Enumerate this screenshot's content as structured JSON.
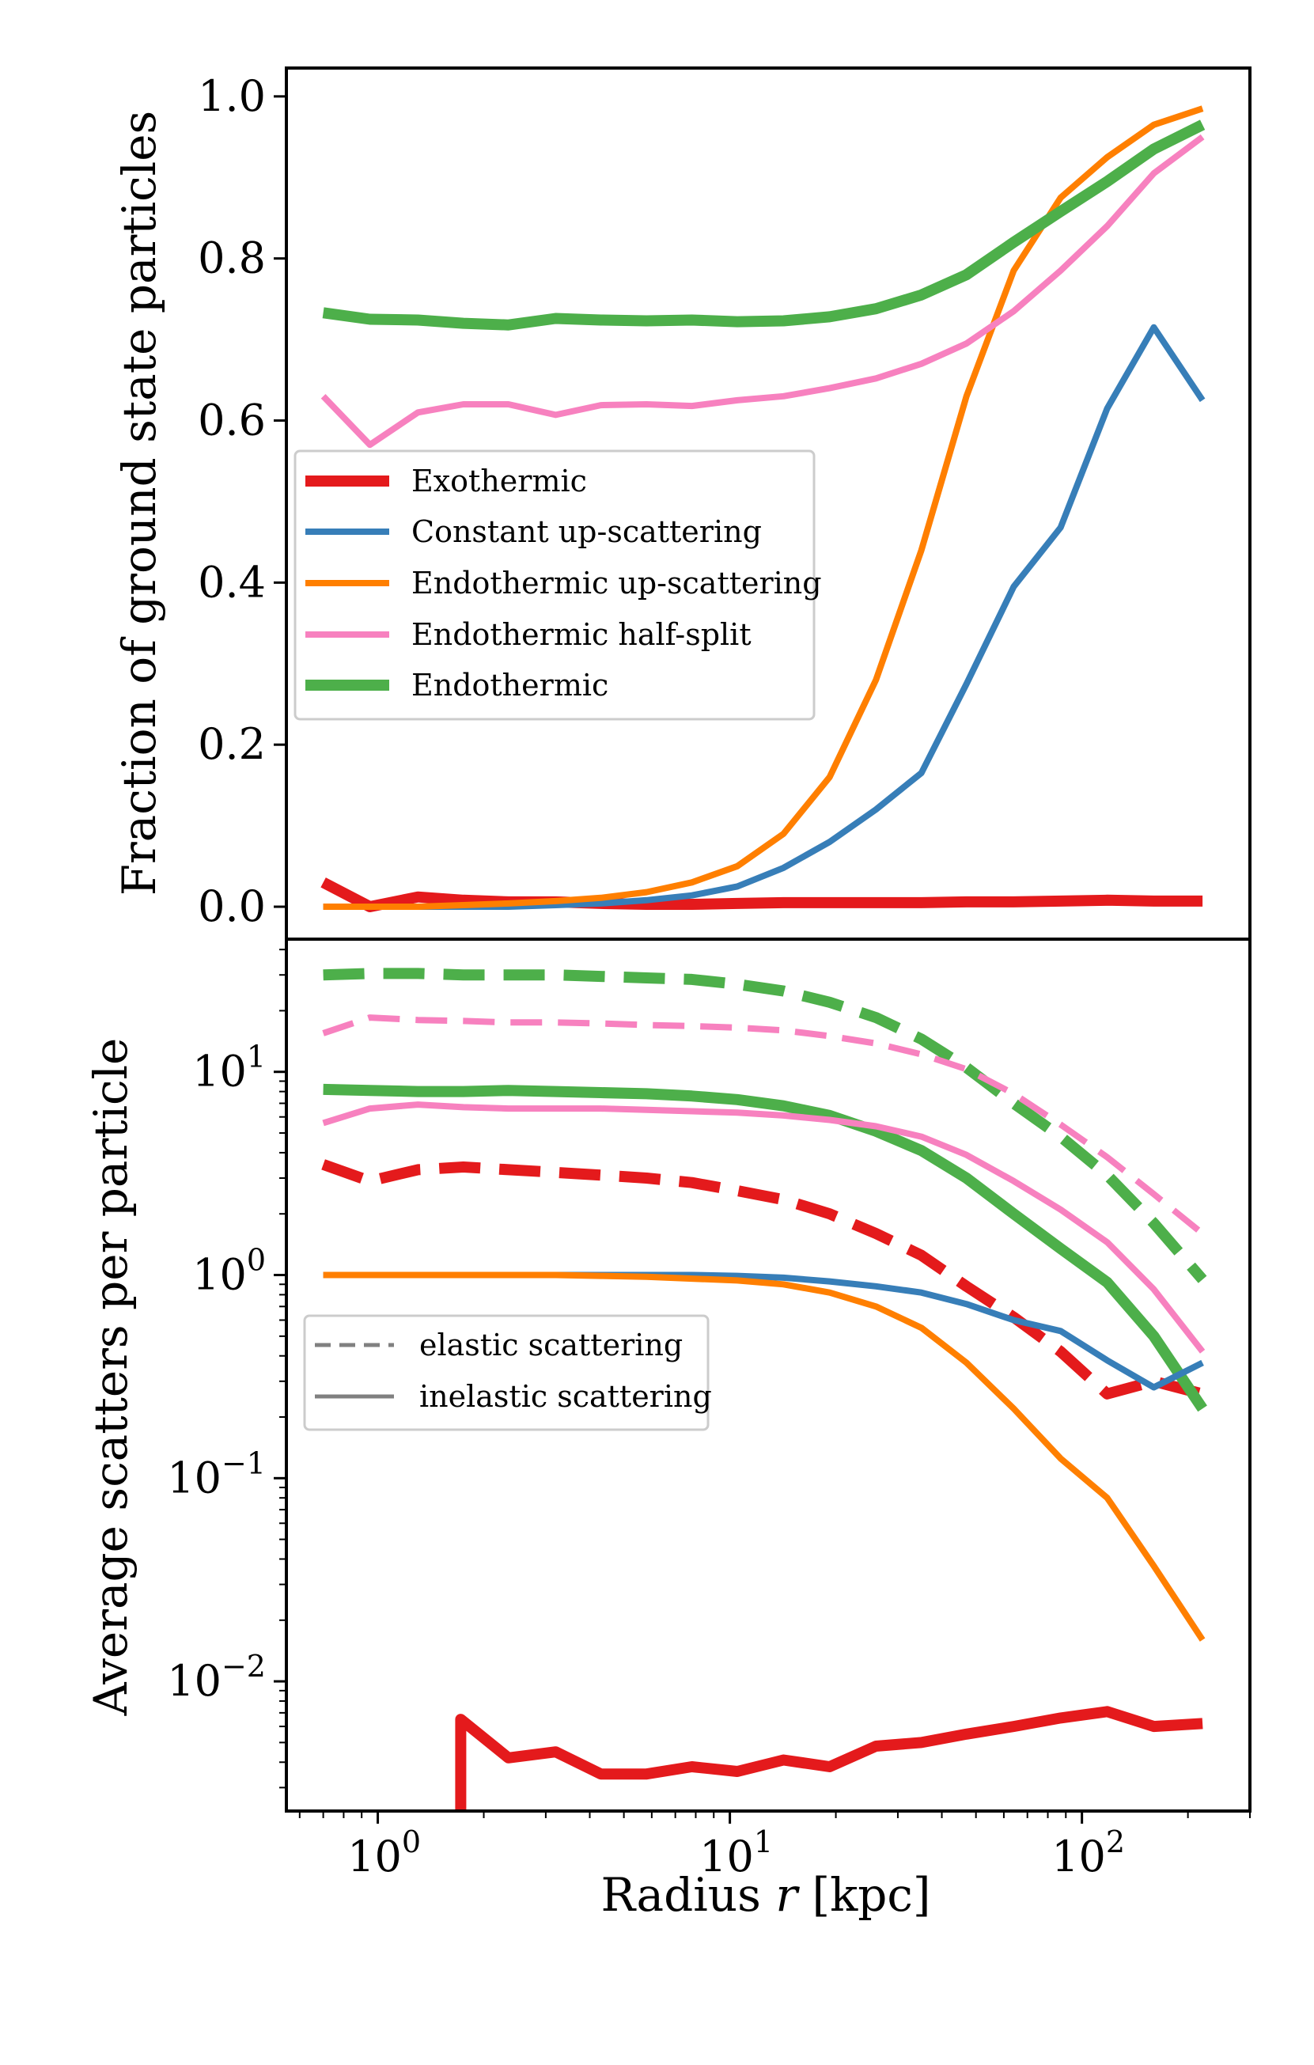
{
  "chart_data": [
    {
      "id": "top",
      "type": "line",
      "x_scale": "log",
      "y_scale": "linear",
      "xlim": [
        0.55,
        300
      ],
      "ylim": [
        -0.04,
        1.035
      ],
      "ylabel": "Fraction of ground state particles",
      "y_ticks": [
        {
          "value": 0.0,
          "label": "0.0"
        },
        {
          "value": 0.2,
          "label": "0.2"
        },
        {
          "value": 0.4,
          "label": "0.4"
        },
        {
          "value": 0.6,
          "label": "0.6"
        },
        {
          "value": 0.8,
          "label": "0.8"
        },
        {
          "value": 1.0,
          "label": "1.0"
        }
      ],
      "legend": {
        "location": "center-left",
        "entries": [
          {
            "label": "Exothermic",
            "color": "#e41a1c",
            "style": "thick"
          },
          {
            "label": "Constant up-scattering",
            "color": "#377eb8",
            "style": "solid"
          },
          {
            "label": "Endothermic up-scattering",
            "color": "#ff7f00",
            "style": "solid"
          },
          {
            "label": "Endothermic half-split",
            "color": "#f781bf",
            "style": "solid"
          },
          {
            "label": "Endothermic",
            "color": "#4daf4a",
            "style": "thick"
          }
        ]
      },
      "series": [
        {
          "name": "Exothermic",
          "color": "#e41a1c",
          "width": "thick",
          "x": [
            0.7,
            0.95,
            1.3,
            1.75,
            2.35,
            3.2,
            4.3,
            5.8,
            7.8,
            10.5,
            14.2,
            19.2,
            26,
            35,
            47,
            64,
            87,
            118,
            160,
            220
          ],
          "y": [
            0.03,
            0.0,
            0.012,
            0.008,
            0.006,
            0.006,
            0.004,
            0.003,
            0.003,
            0.004,
            0.005,
            0.005,
            0.005,
            0.005,
            0.006,
            0.006,
            0.007,
            0.008,
            0.007,
            0.007
          ]
        },
        {
          "name": "Constant up-scattering",
          "color": "#377eb8",
          "width": "normal",
          "x": [
            0.7,
            0.95,
            1.3,
            1.75,
            2.35,
            3.2,
            4.3,
            5.8,
            7.8,
            10.5,
            14.2,
            19.2,
            26,
            35,
            47,
            64,
            87,
            118,
            160,
            220
          ],
          "y": [
            0.0,
            0.0,
            0.0,
            0.0,
            0.0,
            0.002,
            0.004,
            0.008,
            0.014,
            0.025,
            0.048,
            0.08,
            0.12,
            0.165,
            0.275,
            0.395,
            0.468,
            0.615,
            0.715,
            0.625
          ]
        },
        {
          "name": "Endothermic up-scattering",
          "color": "#ff7f00",
          "width": "normal",
          "x": [
            0.7,
            0.95,
            1.3,
            1.75,
            2.35,
            3.2,
            4.3,
            5.8,
            7.8,
            10.5,
            14.2,
            19.2,
            26,
            35,
            47,
            64,
            87,
            118,
            160,
            220
          ],
          "y": [
            0.0,
            0.0,
            0.0,
            0.002,
            0.004,
            0.007,
            0.011,
            0.018,
            0.03,
            0.05,
            0.09,
            0.16,
            0.28,
            0.44,
            0.63,
            0.785,
            0.875,
            0.925,
            0.965,
            0.985
          ]
        },
        {
          "name": "Endothermic half-split",
          "color": "#f781bf",
          "width": "normal",
          "x": [
            0.7,
            0.95,
            1.3,
            1.75,
            2.35,
            3.2,
            4.3,
            5.8,
            7.8,
            10.5,
            14.2,
            19.2,
            26,
            35,
            47,
            64,
            87,
            118,
            160,
            220
          ],
          "y": [
            0.63,
            0.57,
            0.61,
            0.62,
            0.62,
            0.607,
            0.619,
            0.62,
            0.618,
            0.625,
            0.63,
            0.64,
            0.652,
            0.67,
            0.695,
            0.735,
            0.785,
            0.84,
            0.905,
            0.95
          ]
        },
        {
          "name": "Endothermic",
          "color": "#4daf4a",
          "width": "thick",
          "x": [
            0.7,
            0.95,
            1.3,
            1.75,
            2.35,
            3.2,
            4.3,
            5.8,
            7.8,
            10.5,
            14.2,
            19.2,
            26,
            35,
            47,
            64,
            87,
            118,
            160,
            220
          ],
          "y": [
            0.733,
            0.725,
            0.724,
            0.72,
            0.718,
            0.726,
            0.724,
            0.723,
            0.724,
            0.722,
            0.723,
            0.728,
            0.738,
            0.755,
            0.78,
            0.82,
            0.858,
            0.895,
            0.935,
            0.965
          ]
        }
      ]
    },
    {
      "id": "bottom",
      "type": "line",
      "x_scale": "log",
      "y_scale": "log",
      "xlim": [
        0.55,
        300
      ],
      "ylim": [
        0.0023,
        45
      ],
      "xlabel": "Radius r [kpc]",
      "xlabel_parts": {
        "pre": "Radius ",
        "var": "r",
        "post": " [kpc]"
      },
      "ylabel": "Average scatters per particle",
      "x_ticks": [
        {
          "value": 1,
          "base": "10",
          "exp": "0"
        },
        {
          "value": 10,
          "base": "10",
          "exp": "1"
        },
        {
          "value": 100,
          "base": "10",
          "exp": "2"
        }
      ],
      "y_ticks": [
        {
          "value": 0.01,
          "base": "10",
          "exp": "−2"
        },
        {
          "value": 0.1,
          "base": "10",
          "exp": "−1"
        },
        {
          "value": 1,
          "base": "10",
          "exp": "0"
        },
        {
          "value": 10,
          "base": "10",
          "exp": "1"
        }
      ],
      "legend": {
        "location": "center-left",
        "entries": [
          {
            "label": "elastic scattering",
            "color": "#808080",
            "style": "dashed"
          },
          {
            "label": "inelastic scattering",
            "color": "#808080",
            "style": "solid"
          }
        ]
      },
      "series": [
        {
          "name": "Endothermic elastic",
          "color": "#4daf4a",
          "width": "thick",
          "dash": true,
          "x": [
            0.7,
            0.95,
            1.3,
            1.75,
            2.35,
            3.2,
            4.3,
            5.8,
            7.8,
            10.5,
            14.2,
            19.2,
            26,
            35,
            47,
            64,
            87,
            118,
            160,
            220
          ],
          "y": [
            30,
            30.5,
            30.5,
            30,
            30,
            30,
            29.5,
            29,
            28.5,
            27,
            25,
            22,
            18.5,
            14.5,
            10.5,
            7,
            4.8,
            3.1,
            1.8,
            0.95
          ]
        },
        {
          "name": "Endothermic half-split elastic",
          "color": "#f781bf",
          "width": "normal",
          "dash": true,
          "x": [
            0.7,
            0.95,
            1.3,
            1.75,
            2.35,
            3.2,
            4.3,
            5.8,
            7.8,
            10.5,
            14.2,
            19.2,
            26,
            35,
            47,
            64,
            87,
            118,
            160,
            220
          ],
          "y": [
            15.5,
            18.5,
            18,
            17.8,
            17.5,
            17.5,
            17.3,
            17,
            16.8,
            16.5,
            16,
            15,
            13.8,
            12.2,
            10.3,
            7.8,
            5.5,
            3.8,
            2.5,
            1.6
          ]
        },
        {
          "name": "Exothermic elastic",
          "color": "#e41a1c",
          "width": "thick",
          "dash": true,
          "x": [
            0.7,
            0.95,
            1.3,
            1.75,
            2.35,
            3.2,
            4.3,
            5.8,
            7.8,
            10.5,
            14.2,
            19.2,
            26,
            35,
            47,
            64,
            87,
            118,
            160,
            220
          ],
          "y": [
            3.5,
            2.9,
            3.3,
            3.4,
            3.3,
            3.2,
            3.1,
            3.0,
            2.85,
            2.6,
            2.35,
            2.0,
            1.6,
            1.25,
            0.88,
            0.62,
            0.42,
            0.26,
            0.3,
            0.26
          ]
        },
        {
          "name": "Endothermic inelastic",
          "color": "#4daf4a",
          "width": "thick",
          "dash": false,
          "x": [
            0.7,
            0.95,
            1.3,
            1.75,
            2.35,
            3.2,
            4.3,
            5.8,
            7.8,
            10.5,
            14.2,
            19.2,
            26,
            35,
            47,
            64,
            87,
            118,
            160,
            220
          ],
          "y": [
            8.2,
            8.1,
            8.0,
            8.0,
            8.1,
            8.0,
            7.9,
            7.8,
            7.6,
            7.3,
            6.8,
            6.1,
            5.1,
            4.1,
            3.0,
            2.0,
            1.35,
            0.92,
            0.5,
            0.22
          ]
        },
        {
          "name": "Endothermic half-split inelastic",
          "color": "#f781bf",
          "width": "normal",
          "dash": false,
          "x": [
            0.7,
            0.95,
            1.3,
            1.75,
            2.35,
            3.2,
            4.3,
            5.8,
            7.8,
            10.5,
            14.2,
            19.2,
            26,
            35,
            47,
            64,
            87,
            118,
            160,
            220
          ],
          "y": [
            5.6,
            6.6,
            6.9,
            6.7,
            6.6,
            6.6,
            6.6,
            6.5,
            6.4,
            6.3,
            6.1,
            5.8,
            5.4,
            4.8,
            3.9,
            2.9,
            2.1,
            1.45,
            0.85,
            0.42
          ]
        },
        {
          "name": "Constant up-scattering inelastic",
          "color": "#377eb8",
          "width": "normal",
          "dash": false,
          "x": [
            0.7,
            0.95,
            1.3,
            1.75,
            2.35,
            3.2,
            4.3,
            5.8,
            7.8,
            10.5,
            14.2,
            19.2,
            26,
            35,
            47,
            64,
            87,
            118,
            160,
            220
          ],
          "y": [
            1.0,
            1.0,
            1.0,
            1.0,
            1.0,
            1.0,
            1.0,
            1.0,
            1.0,
            0.99,
            0.97,
            0.93,
            0.88,
            0.82,
            0.72,
            0.6,
            0.53,
            0.38,
            0.28,
            0.37
          ]
        },
        {
          "name": "Endothermic up-scattering inelastic",
          "color": "#ff7f00",
          "width": "normal",
          "dash": false,
          "x": [
            0.7,
            0.95,
            1.3,
            1.75,
            2.35,
            3.2,
            4.3,
            5.8,
            7.8,
            10.5,
            14.2,
            19.2,
            26,
            35,
            47,
            64,
            87,
            118,
            160,
            220
          ],
          "y": [
            1.0,
            1.0,
            1.0,
            1.0,
            1.0,
            1.0,
            0.99,
            0.98,
            0.96,
            0.94,
            0.9,
            0.82,
            0.7,
            0.55,
            0.37,
            0.22,
            0.125,
            0.08,
            0.037,
            0.016
          ]
        },
        {
          "name": "Exothermic inelastic",
          "color": "#e41a1c",
          "width": "thick",
          "dash": false,
          "x": [
            1.72,
            1.72,
            2.35,
            3.2,
            4.3,
            5.8,
            7.8,
            10.5,
            14.2,
            19.2,
            26,
            35,
            47,
            64,
            87,
            118,
            160,
            220
          ],
          "y": [
            0.0015,
            0.0065,
            0.0042,
            0.0045,
            0.0035,
            0.0035,
            0.0038,
            0.0036,
            0.0041,
            0.0038,
            0.0048,
            0.005,
            0.0055,
            0.006,
            0.0066,
            0.0071,
            0.006,
            0.0062
          ]
        }
      ]
    }
  ]
}
